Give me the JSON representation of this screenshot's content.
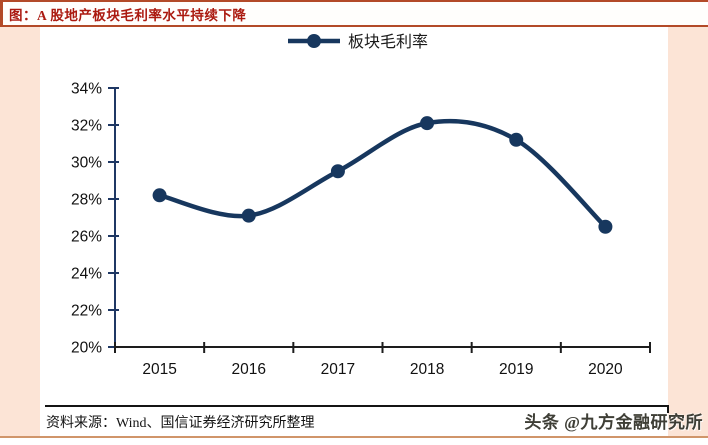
{
  "card": {
    "title": "图：A 股地产板块毛利率水平持续下降",
    "source_label": "资料来源：Wind、国信证券经济研究所整理",
    "watermark": "头条 @九方金融研究所"
  },
  "colors": {
    "accent_red": "#ab1a10",
    "border_red": "#b34a28",
    "border_tan": "#d0956a",
    "panel_peach": "#fce4d6",
    "line_navy": "#17375e",
    "y_axis": "#1f3864",
    "x_axis": "#1d1d1d",
    "tick_label": "#111111"
  },
  "chart_data": {
    "type": "line",
    "title": "",
    "legend": [
      "板块毛利率"
    ],
    "legend_position": "top-center",
    "categories": [
      "2015",
      "2016",
      "2017",
      "2018",
      "2019",
      "2020"
    ],
    "series": [
      {
        "name": "板块毛利率",
        "values": [
          28.2,
          27.1,
          29.5,
          32.1,
          31.2,
          26.5
        ]
      }
    ],
    "ylim": [
      20,
      34
    ],
    "ytick_step": 2,
    "ytick_labels": [
      "20%",
      "22%",
      "24%",
      "26%",
      "28%",
      "30%",
      "32%",
      "34%"
    ],
    "grid": false,
    "smooth": true,
    "marker": "circle"
  }
}
